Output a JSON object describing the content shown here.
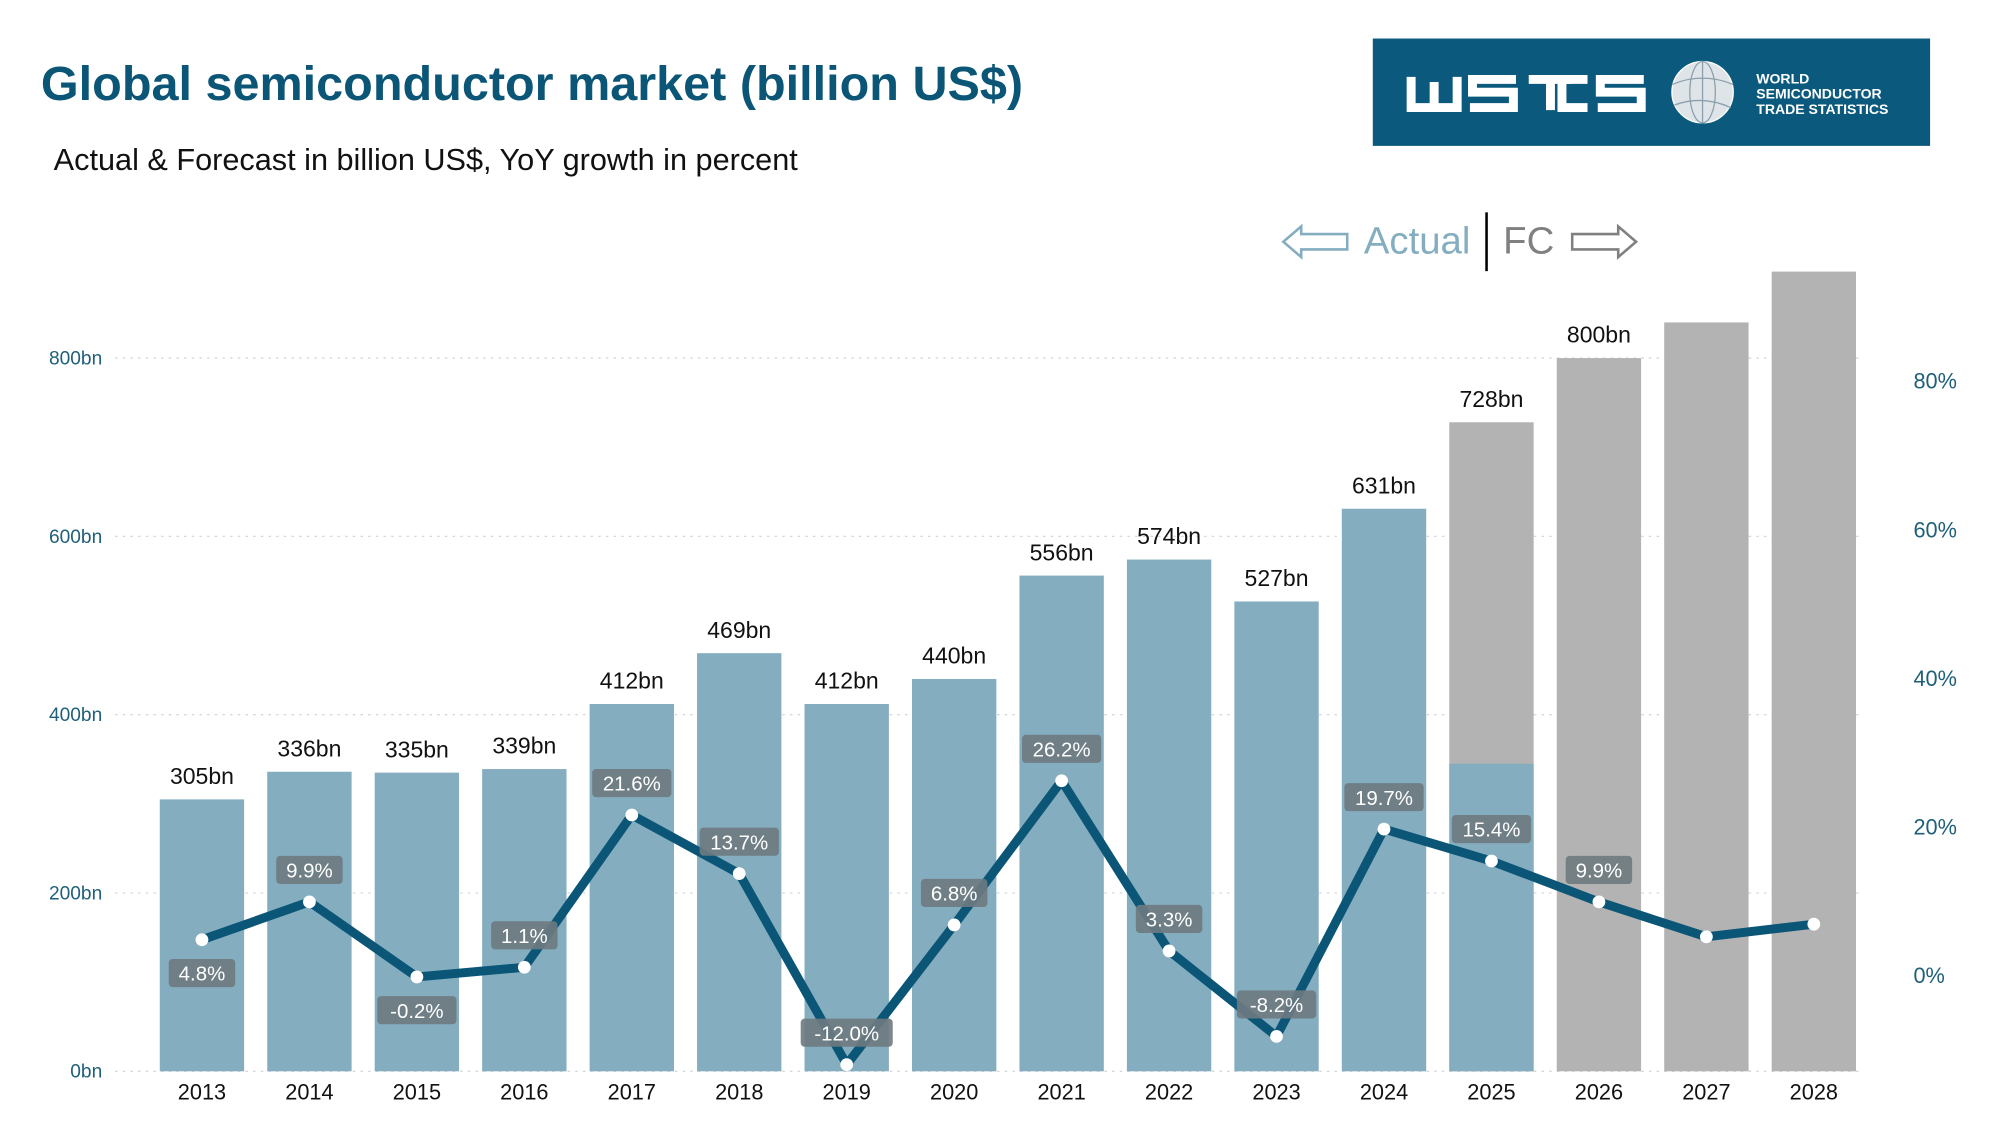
{
  "title": "Global semiconductor market (billion US$)",
  "subtitle": "Actual & Forecast in billion US$, YoY growth in percent",
  "logo": {
    "text": "WSTS",
    "line1": "WORLD",
    "line2": "SEMICONDUCTOR",
    "line3": "TRADE STATISTICS",
    "bg_color": "#0b5a7e"
  },
  "legend": {
    "actual": "Actual",
    "forecast": "FC"
  },
  "colors": {
    "actual_bar": "#84adc0",
    "forecast_bar": "#b3b3b3",
    "growth_line": "#0b5577",
    "label_box": "#6e7a80",
    "axis_text": "#1f5f7a"
  },
  "chart_data": {
    "type": "bar+line",
    "categories": [
      "2013",
      "2014",
      "2015",
      "2016",
      "2017",
      "2018",
      "2019",
      "2020",
      "2021",
      "2022",
      "2023",
      "2024",
      "2025",
      "2026",
      "2027",
      "2028"
    ],
    "series": [
      {
        "values": [
          305,
          336,
          335,
          339,
          412,
          469,
          412,
          440,
          556,
          574,
          527,
          631,
          728,
          800,
          840,
          897
        ],
        "labels": [
          "305bn",
          "336bn",
          "335bn",
          "339bn",
          "412bn",
          "469bn",
          "412bn",
          "440bn",
          "556bn",
          "574bn",
          "527bn",
          "631bn",
          "728bn",
          "800bn",
          "",
          ""
        ],
        "actual_portion": [
          305,
          336,
          335,
          339,
          412,
          469,
          412,
          440,
          556,
          574,
          527,
          631,
          345,
          0,
          0,
          0
        ],
        "axis": "left"
      },
      {
        "values": [
          4.8,
          9.9,
          -0.2,
          1.1,
          21.6,
          13.7,
          -12.0,
          6.8,
          26.2,
          3.3,
          -8.2,
          19.7,
          15.4,
          9.9,
          5.2,
          6.9
        ],
        "labels": [
          "4.8%",
          "9.9%",
          "-0.2%",
          "1.1%",
          "21.6%",
          "13.7%",
          "-12.0%",
          "6.8%",
          "26.2%",
          "3.3%",
          "-8.2%",
          "19.7%",
          "15.4%",
          "9.9%",
          "",
          ""
        ],
        "type": "line",
        "axis": "right"
      }
    ],
    "left_axis": {
      "ticks": [
        "0bn",
        "200bn",
        "400bn",
        "600bn",
        "800bn"
      ],
      "tick_values": [
        0,
        200,
        400,
        600,
        800
      ],
      "ylim": [
        0,
        900
      ]
    },
    "right_axis": {
      "ticks": [
        "0%",
        "20%",
        "40%",
        "60%",
        "80%"
      ],
      "tick_values": [
        0,
        20,
        40,
        60,
        80
      ]
    },
    "grid": true
  }
}
